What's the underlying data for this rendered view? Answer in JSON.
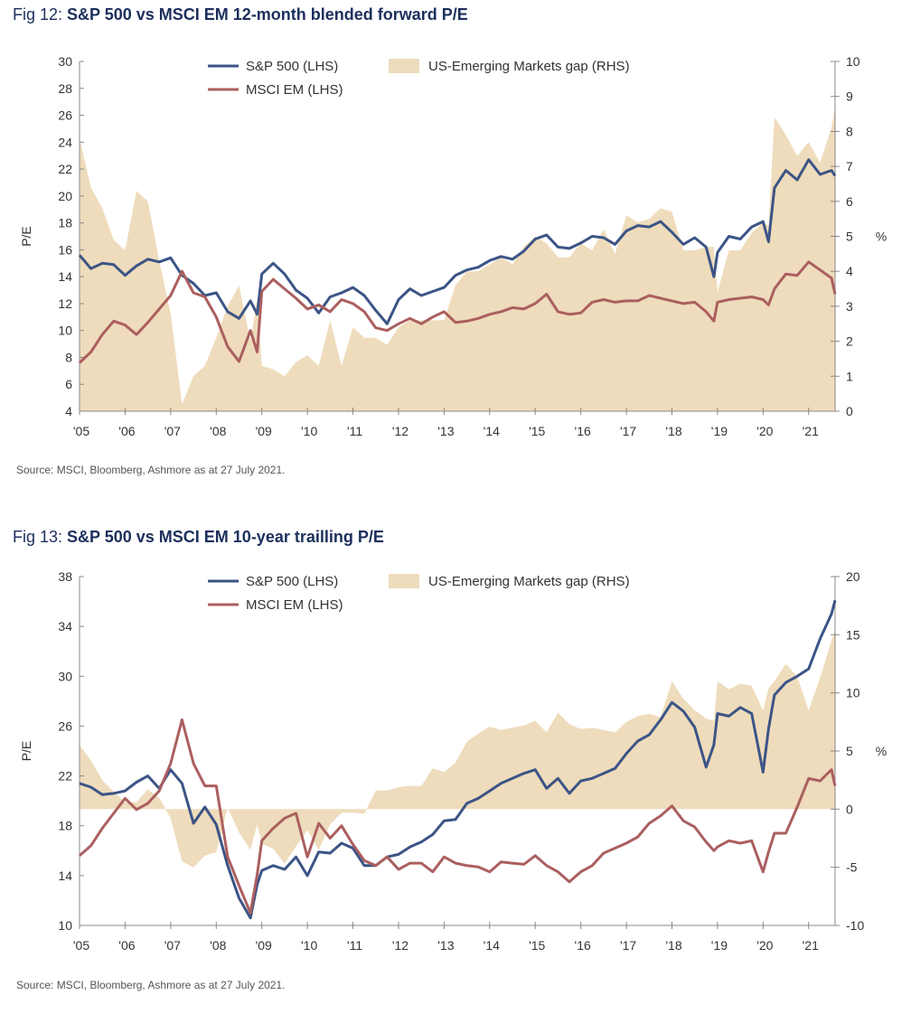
{
  "charts": [
    {
      "fig_label": "Fig 12:",
      "title": "S&P 500 vs MSCI EM 12-month blended forward P/E",
      "source": "Source: MSCI, Bloomberg, Ashmore as at 27 July 2021.",
      "left_axis_label": "P/E",
      "right_axis_label": "%",
      "legend": [
        "S&P 500 (LHS)",
        "MSCI EM (LHS)",
        "US-Emerging Markets gap (RHS)"
      ]
    },
    {
      "fig_label": "Fig 13:",
      "title": "S&P 500 vs MSCI EM 10-year trailling P/E",
      "source": "Source: MSCI, Bloomberg, Ashmore as at 27 July 2021.",
      "left_axis_label": "P/E",
      "right_axis_label": "%",
      "legend": [
        "S&P 500 (LHS)",
        "MSCI EM (LHS)",
        "US-Emerging Markets gap (RHS)"
      ]
    }
  ],
  "colors": {
    "sp500": "#3c5486",
    "msci_em": "#ab5f5f",
    "gap": "#eedcbc",
    "title": "#1c2f5c",
    "axis": "#888888"
  },
  "chart_data": [
    {
      "type": "line",
      "x_tick_labels": [
        "'05",
        "'06",
        "'07",
        "'08",
        "'09",
        "'10",
        "'11",
        "'12",
        "'13",
        "'14",
        "'15",
        "'16",
        "'17",
        "'18",
        "'19",
        "'20",
        "'21"
      ],
      "x_range": [
        2005,
        2021.58
      ],
      "ylim_left": [
        4,
        30
      ],
      "y_ticks_left": [
        4,
        6,
        8,
        10,
        12,
        14,
        16,
        18,
        20,
        22,
        24,
        26,
        28,
        30
      ],
      "ylim_right": [
        0,
        10
      ],
      "y_ticks_right": [
        0,
        1,
        2,
        3,
        4,
        5,
        6,
        7,
        8,
        9,
        10
      ],
      "series": [
        {
          "name": "S&P 500 (LHS)",
          "axis": "left",
          "type": "line",
          "x": [
            2005.0,
            2005.25,
            2005.5,
            2005.75,
            2006.0,
            2006.25,
            2006.5,
            2006.75,
            2007.0,
            2007.25,
            2007.5,
            2007.75,
            2008.0,
            2008.25,
            2008.5,
            2008.75,
            2008.9,
            2009.0,
            2009.25,
            2009.5,
            2009.75,
            2010.0,
            2010.25,
            2010.5,
            2010.75,
            2011.0,
            2011.25,
            2011.5,
            2011.75,
            2012.0,
            2012.25,
            2012.5,
            2012.75,
            2013.0,
            2013.25,
            2013.5,
            2013.75,
            2014.0,
            2014.25,
            2014.5,
            2014.75,
            2015.0,
            2015.25,
            2015.5,
            2015.75,
            2016.0,
            2016.25,
            2016.5,
            2016.75,
            2017.0,
            2017.25,
            2017.5,
            2017.75,
            2018.0,
            2018.25,
            2018.5,
            2018.75,
            2018.92,
            2019.0,
            2019.25,
            2019.5,
            2019.75,
            2020.0,
            2020.12,
            2020.25,
            2020.5,
            2020.75,
            2021.0,
            2021.25,
            2021.5,
            2021.58
          ],
          "y": [
            15.6,
            14.6,
            15.0,
            14.9,
            14.1,
            14.8,
            15.3,
            15.1,
            15.4,
            14.1,
            13.5,
            12.6,
            12.8,
            11.4,
            10.9,
            12.2,
            11.2,
            14.2,
            15.0,
            14.2,
            13.0,
            12.4,
            11.3,
            12.5,
            12.8,
            13.2,
            12.6,
            11.5,
            10.5,
            12.3,
            13.1,
            12.6,
            12.9,
            13.2,
            14.1,
            14.5,
            14.7,
            15.2,
            15.5,
            15.3,
            15.9,
            16.8,
            17.1,
            16.2,
            16.1,
            16.5,
            17.0,
            16.9,
            16.4,
            17.4,
            17.8,
            17.7,
            18.1,
            17.3,
            16.4,
            16.9,
            16.2,
            14.0,
            15.8,
            17.0,
            16.8,
            17.7,
            18.1,
            16.6,
            20.6,
            21.9,
            21.2,
            22.7,
            21.6,
            21.9,
            21.5
          ]
        },
        {
          "name": "MSCI EM (LHS)",
          "axis": "left",
          "type": "line",
          "x": [
            2005.0,
            2005.25,
            2005.5,
            2005.75,
            2006.0,
            2006.25,
            2006.5,
            2006.75,
            2007.0,
            2007.25,
            2007.5,
            2007.75,
            2008.0,
            2008.25,
            2008.5,
            2008.75,
            2008.9,
            2009.0,
            2009.25,
            2009.5,
            2009.75,
            2010.0,
            2010.25,
            2010.5,
            2010.75,
            2011.0,
            2011.25,
            2011.5,
            2011.75,
            2012.0,
            2012.25,
            2012.5,
            2012.75,
            2013.0,
            2013.25,
            2013.5,
            2013.75,
            2014.0,
            2014.25,
            2014.5,
            2014.75,
            2015.0,
            2015.25,
            2015.5,
            2015.75,
            2016.0,
            2016.25,
            2016.5,
            2016.75,
            2017.0,
            2017.25,
            2017.5,
            2017.75,
            2018.0,
            2018.25,
            2018.5,
            2018.75,
            2018.92,
            2019.0,
            2019.25,
            2019.5,
            2019.75,
            2020.0,
            2020.12,
            2020.25,
            2020.5,
            2020.75,
            2021.0,
            2021.25,
            2021.5,
            2021.58
          ],
          "y": [
            7.6,
            8.4,
            9.7,
            10.7,
            10.4,
            9.7,
            10.6,
            11.6,
            12.6,
            14.4,
            12.8,
            12.5,
            11.0,
            8.8,
            7.7,
            10.0,
            8.4,
            12.9,
            13.8,
            13.1,
            12.4,
            11.6,
            11.9,
            11.4,
            12.3,
            12.0,
            11.4,
            10.2,
            10.0,
            10.5,
            10.9,
            10.5,
            11.0,
            11.4,
            10.6,
            10.7,
            10.9,
            11.2,
            11.4,
            11.7,
            11.6,
            12.0,
            12.7,
            11.4,
            11.2,
            11.3,
            12.1,
            12.3,
            12.1,
            12.2,
            12.2,
            12.6,
            12.4,
            12.2,
            12.0,
            12.1,
            11.4,
            10.7,
            12.1,
            12.3,
            12.4,
            12.5,
            12.3,
            11.9,
            13.1,
            14.2,
            14.1,
            15.1,
            14.5,
            13.9,
            12.7
          ]
        },
        {
          "name": "US-Emerging Markets gap (RHS)",
          "axis": "right",
          "type": "area",
          "x": [
            2005.0,
            2005.25,
            2005.5,
            2005.75,
            2006.0,
            2006.25,
            2006.5,
            2006.75,
            2007.0,
            2007.25,
            2007.5,
            2007.75,
            2008.0,
            2008.25,
            2008.5,
            2008.75,
            2008.9,
            2009.0,
            2009.25,
            2009.5,
            2009.75,
            2010.0,
            2010.25,
            2010.5,
            2010.75,
            2011.0,
            2011.25,
            2011.5,
            2011.75,
            2012.0,
            2012.25,
            2012.5,
            2012.75,
            2013.0,
            2013.25,
            2013.5,
            2013.75,
            2014.0,
            2014.25,
            2014.5,
            2014.75,
            2015.0,
            2015.25,
            2015.5,
            2015.75,
            2016.0,
            2016.25,
            2016.5,
            2016.75,
            2017.0,
            2017.25,
            2017.5,
            2017.75,
            2018.0,
            2018.25,
            2018.5,
            2018.75,
            2018.92,
            2019.0,
            2019.25,
            2019.5,
            2019.75,
            2020.0,
            2020.12,
            2020.25,
            2020.5,
            2020.75,
            2021.0,
            2021.25,
            2021.5,
            2021.58
          ],
          "y": [
            7.8,
            6.4,
            5.8,
            4.9,
            4.6,
            6.3,
            6.0,
            4.3,
            2.8,
            0.2,
            1.0,
            1.3,
            2.1,
            3.0,
            3.6,
            2.0,
            3.2,
            1.3,
            1.2,
            1.0,
            1.4,
            1.6,
            1.3,
            2.6,
            1.3,
            2.4,
            2.1,
            2.1,
            1.9,
            2.4,
            2.6,
            2.6,
            2.6,
            2.6,
            3.6,
            4.0,
            4.0,
            4.2,
            4.4,
            4.2,
            4.7,
            5.0,
            4.8,
            4.4,
            4.4,
            4.8,
            4.6,
            5.2,
            4.5,
            5.6,
            5.4,
            5.5,
            5.8,
            5.7,
            4.6,
            4.6,
            4.7,
            4.7,
            3.4,
            4.6,
            4.6,
            5.1,
            5.4,
            5.3,
            8.4,
            7.9,
            7.3,
            7.7,
            7.1,
            8.1,
            8.7
          ]
        }
      ]
    },
    {
      "type": "line",
      "x_tick_labels": [
        "'05",
        "'06",
        "'07",
        "'08",
        "'09",
        "'10",
        "'11",
        "'12",
        "'13",
        "'14",
        "'15",
        "'16",
        "'17",
        "'18",
        "'19",
        "'20",
        "'21"
      ],
      "x_range": [
        2005,
        2021.58
      ],
      "ylim_left": [
        10,
        38
      ],
      "y_ticks_left": [
        10,
        14,
        18,
        22,
        26,
        30,
        34,
        38
      ],
      "ylim_right": [
        -10,
        20
      ],
      "y_ticks_right": [
        -10,
        -5,
        0,
        5,
        10,
        15,
        20
      ],
      "series": [
        {
          "name": "S&P 500 (LHS)",
          "axis": "left",
          "type": "line",
          "x": [
            2005.0,
            2005.25,
            2005.5,
            2005.75,
            2006.0,
            2006.25,
            2006.5,
            2006.75,
            2007.0,
            2007.25,
            2007.5,
            2007.75,
            2008.0,
            2008.25,
            2008.5,
            2008.75,
            2008.9,
            2009.0,
            2009.25,
            2009.5,
            2009.75,
            2010.0,
            2010.25,
            2010.5,
            2010.75,
            2011.0,
            2011.25,
            2011.5,
            2011.75,
            2012.0,
            2012.25,
            2012.5,
            2012.75,
            2013.0,
            2013.25,
            2013.5,
            2013.75,
            2014.0,
            2014.25,
            2014.5,
            2014.75,
            2015.0,
            2015.25,
            2015.5,
            2015.75,
            2016.0,
            2016.25,
            2016.5,
            2016.75,
            2017.0,
            2017.25,
            2017.5,
            2017.75,
            2018.0,
            2018.25,
            2018.5,
            2018.75,
            2018.92,
            2019.0,
            2019.25,
            2019.5,
            2019.75,
            2020.0,
            2020.12,
            2020.25,
            2020.5,
            2020.75,
            2021.0,
            2021.25,
            2021.5,
            2021.58
          ],
          "y": [
            21.4,
            21.1,
            20.5,
            20.6,
            20.8,
            21.5,
            22.0,
            21.0,
            22.5,
            21.4,
            18.2,
            19.5,
            18.1,
            14.8,
            12.2,
            10.6,
            13.3,
            14.4,
            14.8,
            14.5,
            15.5,
            14.0,
            15.9,
            15.8,
            16.6,
            16.2,
            14.8,
            14.8,
            15.5,
            15.7,
            16.3,
            16.7,
            17.3,
            18.4,
            18.5,
            19.8,
            20.2,
            20.8,
            21.4,
            21.8,
            22.2,
            22.5,
            21.0,
            21.8,
            20.6,
            21.6,
            21.8,
            22.2,
            22.6,
            23.8,
            24.8,
            25.3,
            26.5,
            27.9,
            27.2,
            25.9,
            22.7,
            24.5,
            27.0,
            26.8,
            27.5,
            27.0,
            22.3,
            25.8,
            28.5,
            29.5,
            30.0,
            30.6,
            33.0,
            35.0,
            36.1
          ]
        },
        {
          "name": "MSCI EM (LHS)",
          "axis": "left",
          "type": "line",
          "x": [
            2005.0,
            2005.25,
            2005.5,
            2005.75,
            2006.0,
            2006.25,
            2006.5,
            2006.75,
            2007.0,
            2007.25,
            2007.5,
            2007.75,
            2008.0,
            2008.25,
            2008.5,
            2008.75,
            2008.9,
            2009.0,
            2009.25,
            2009.5,
            2009.75,
            2010.0,
            2010.25,
            2010.5,
            2010.75,
            2011.0,
            2011.25,
            2011.5,
            2011.75,
            2012.0,
            2012.25,
            2012.5,
            2012.75,
            2013.0,
            2013.25,
            2013.5,
            2013.75,
            2014.0,
            2014.25,
            2014.5,
            2014.75,
            2015.0,
            2015.25,
            2015.5,
            2015.75,
            2016.0,
            2016.25,
            2016.5,
            2016.75,
            2017.0,
            2017.25,
            2017.5,
            2017.75,
            2018.0,
            2018.25,
            2018.5,
            2018.75,
            2018.92,
            2019.0,
            2019.25,
            2019.5,
            2019.75,
            2020.0,
            2020.12,
            2020.25,
            2020.5,
            2020.75,
            2021.0,
            2021.25,
            2021.5,
            2021.58
          ],
          "y": [
            15.6,
            16.4,
            17.8,
            19.0,
            20.2,
            19.3,
            19.8,
            20.8,
            23.0,
            26.5,
            23.0,
            21.2,
            21.2,
            15.5,
            13.2,
            11.0,
            14.1,
            16.8,
            17.8,
            18.6,
            19.0,
            15.5,
            18.2,
            17.0,
            18.0,
            16.5,
            15.2,
            14.8,
            15.5,
            14.5,
            15.0,
            15.0,
            14.3,
            15.5,
            15.0,
            14.8,
            14.7,
            14.3,
            15.1,
            15.0,
            14.9,
            15.6,
            14.8,
            14.3,
            13.5,
            14.3,
            14.8,
            15.8,
            16.2,
            16.6,
            17.1,
            18.2,
            18.8,
            19.6,
            18.4,
            17.9,
            16.7,
            16.0,
            16.3,
            16.8,
            16.6,
            16.8,
            14.3,
            15.9,
            17.4,
            17.4,
            19.5,
            21.8,
            21.6,
            22.5,
            21.2
          ]
        },
        {
          "name": "US-Emerging Markets gap (RHS)",
          "axis": "right",
          "type": "area",
          "x": [
            2005.0,
            2005.25,
            2005.5,
            2005.75,
            2006.0,
            2006.25,
            2006.5,
            2006.75,
            2007.0,
            2007.25,
            2007.5,
            2007.75,
            2008.0,
            2008.25,
            2008.5,
            2008.75,
            2008.9,
            2009.0,
            2009.25,
            2009.5,
            2009.75,
            2010.0,
            2010.25,
            2010.5,
            2010.75,
            2011.0,
            2011.25,
            2011.5,
            2011.75,
            2012.0,
            2012.25,
            2012.5,
            2012.75,
            2013.0,
            2013.25,
            2013.5,
            2013.75,
            2014.0,
            2014.25,
            2014.5,
            2014.75,
            2015.0,
            2015.25,
            2015.5,
            2015.75,
            2016.0,
            2016.25,
            2016.5,
            2016.75,
            2017.0,
            2017.25,
            2017.5,
            2017.75,
            2018.0,
            2018.25,
            2018.5,
            2018.75,
            2018.92,
            2019.0,
            2019.25,
            2019.5,
            2019.75,
            2020.0,
            2020.12,
            2020.25,
            2020.5,
            2020.75,
            2021.0,
            2021.25,
            2021.5,
            2021.58
          ],
          "y": [
            5.5,
            4.2,
            2.5,
            1.5,
            0.6,
            0.6,
            1.7,
            1.0,
            -0.8,
            -4.5,
            -5.0,
            -4.0,
            -3.7,
            0.1,
            -2.0,
            -3.5,
            -1.3,
            -3.0,
            -3.4,
            -4.7,
            -3.2,
            -1.8,
            -3.5,
            -1.3,
            -0.3,
            -0.3,
            -0.4,
            1.6,
            1.6,
            1.9,
            2.0,
            2.0,
            3.5,
            3.2,
            4.0,
            5.8,
            6.5,
            7.1,
            6.8,
            7.0,
            7.2,
            7.6,
            6.6,
            8.3,
            7.3,
            6.9,
            7.0,
            6.8,
            6.6,
            7.5,
            8.0,
            8.2,
            7.9,
            11.0,
            9.5,
            8.5,
            7.8,
            7.6,
            11.0,
            10.3,
            10.8,
            10.6,
            8.5,
            10.4,
            11.0,
            12.5,
            11.4,
            8.5,
            11.3,
            14.5,
            15.4
          ]
        }
      ]
    }
  ]
}
